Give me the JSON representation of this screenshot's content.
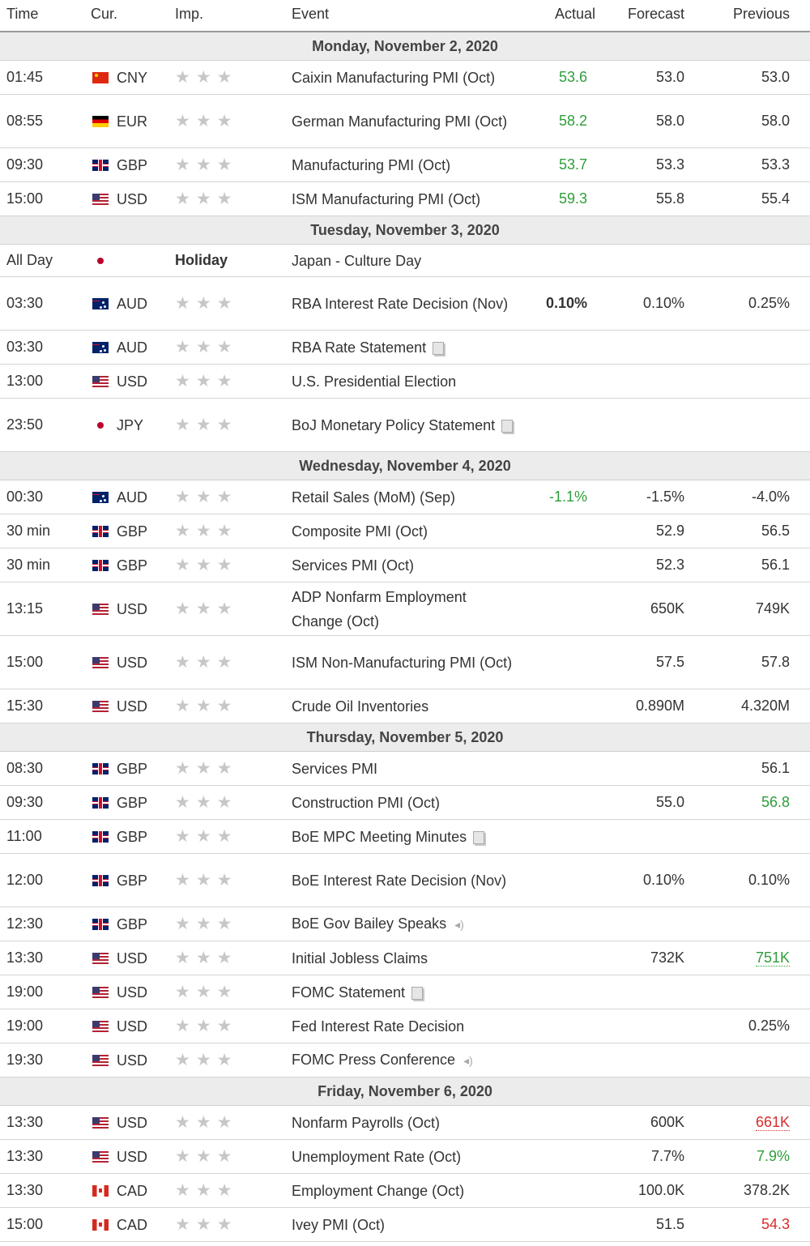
{
  "headers": {
    "time": "Time",
    "cur": "Cur.",
    "imp": "Imp.",
    "event": "Event",
    "actual": "Actual",
    "forecast": "Forecast",
    "previous": "Previous"
  },
  "colors": {
    "positive": "#2e9e3a",
    "negative": "#d92b2b",
    "day_header_bg": "#ececec"
  },
  "days": [
    {
      "label": "Monday, November 2, 2020",
      "events": [
        {
          "time": "01:45",
          "flag": "cn",
          "cur": "CNY",
          "event": "Caixin Manufacturing PMI (Oct)",
          "actual": "53.6",
          "actual_style": "green",
          "forecast": "53.0",
          "previous": "53.0",
          "h": 42
        },
        {
          "time": "08:55",
          "flag": "de",
          "cur": "EUR",
          "event": "German Manufacturing PMI (Oct)",
          "actual": "58.2",
          "actual_style": "green",
          "forecast": "58.0",
          "previous": "58.0",
          "h": 66
        },
        {
          "time": "09:30",
          "flag": "gb",
          "cur": "GBP",
          "event": "Manufacturing PMI (Oct)",
          "actual": "53.7",
          "actual_style": "green",
          "forecast": "53.3",
          "previous": "53.3",
          "h": 42
        },
        {
          "time": "15:00",
          "flag": "us",
          "cur": "USD",
          "event": "ISM Manufacturing PMI (Oct)",
          "actual": "59.3",
          "actual_style": "green",
          "forecast": "55.8",
          "previous": "55.4",
          "h": 42
        }
      ]
    },
    {
      "label": "Tuesday, November 3, 2020",
      "events": [
        {
          "time": "All Day",
          "flag": "jp",
          "cur": "",
          "holiday": "Holiday",
          "event": "Japan - Culture Day",
          "actual": "",
          "forecast": "",
          "previous": "",
          "h": 40
        },
        {
          "time": "03:30",
          "flag": "au",
          "cur": "AUD",
          "event": "RBA Interest Rate Decision (Nov)",
          "actual": "0.10%",
          "actual_style": "bold",
          "forecast": "0.10%",
          "previous": "0.25%",
          "h": 66
        },
        {
          "time": "03:30",
          "flag": "au",
          "cur": "AUD",
          "event": "RBA Rate Statement",
          "icon": "doc-icon",
          "actual": "",
          "forecast": "",
          "previous": "",
          "h": 42
        },
        {
          "time": "13:00",
          "flag": "us",
          "cur": "USD",
          "event": "U.S. Presidential Election",
          "actual": "",
          "forecast": "",
          "previous": "",
          "h": 42
        },
        {
          "time": "23:50",
          "flag": "jp",
          "cur": "JPY",
          "event": "BoJ Monetary Policy Statement",
          "icon": "doc-icon",
          "actual": "",
          "forecast": "",
          "previous": "",
          "h": 66
        }
      ]
    },
    {
      "label": "Wednesday, November 4, 2020",
      "events": [
        {
          "time": "00:30",
          "flag": "au",
          "cur": "AUD",
          "event": "Retail Sales (MoM) (Sep)",
          "actual": "-1.1%",
          "actual_style": "green",
          "forecast": "-1.5%",
          "previous": "-4.0%",
          "h": 42
        },
        {
          "time": "30 min",
          "flag": "gb",
          "cur": "GBP",
          "event": "Composite PMI (Oct)",
          "actual": "",
          "forecast": "52.9",
          "previous": "56.5",
          "h": 42
        },
        {
          "time": "30 min",
          "flag": "gb",
          "cur": "GBP",
          "event": "Services PMI (Oct)",
          "actual": "",
          "forecast": "52.3",
          "previous": "56.1",
          "h": 42
        },
        {
          "time": "13:15",
          "flag": "us",
          "cur": "USD",
          "event": "ADP Nonfarm Employment Change (Oct)",
          "actual": "",
          "forecast": "650K",
          "previous": "749K",
          "h": 66
        },
        {
          "time": "15:00",
          "flag": "us",
          "cur": "USD",
          "event": "ISM Non-Manufacturing PMI (Oct)",
          "actual": "",
          "forecast": "57.5",
          "previous": "57.8",
          "h": 66
        },
        {
          "time": "15:30",
          "flag": "us",
          "cur": "USD",
          "event": "Crude Oil Inventories",
          "actual": "",
          "forecast": "0.890M",
          "previous": "4.320M",
          "h": 42
        }
      ]
    },
    {
      "label": "Thursday, November 5, 2020",
      "events": [
        {
          "time": "08:30",
          "flag": "gb",
          "cur": "GBP",
          "event": "Services PMI",
          "actual": "",
          "forecast": "",
          "previous": "56.1",
          "h": 42
        },
        {
          "time": "09:30",
          "flag": "gb",
          "cur": "GBP",
          "event": "Construction PMI (Oct)",
          "actual": "",
          "forecast": "55.0",
          "previous": "56.8",
          "previous_style": "green",
          "h": 42
        },
        {
          "time": "11:00",
          "flag": "gb",
          "cur": "GBP",
          "event": "BoE MPC Meeting Minutes",
          "icon": "doc-icon",
          "actual": "",
          "forecast": "",
          "previous": "",
          "h": 42
        },
        {
          "time": "12:00",
          "flag": "gb",
          "cur": "GBP",
          "event": "BoE Interest Rate Decision (Nov)",
          "actual": "",
          "forecast": "0.10%",
          "previous": "0.10%",
          "h": 66
        },
        {
          "time": "12:30",
          "flag": "gb",
          "cur": "GBP",
          "event": "BoE Gov Bailey Speaks",
          "icon": "speaker-icon",
          "actual": "",
          "forecast": "",
          "previous": "",
          "h": 42
        },
        {
          "time": "13:30",
          "flag": "us",
          "cur": "USD",
          "event": "Initial Jobless Claims",
          "actual": "",
          "forecast": "732K",
          "previous": "751K",
          "previous_style": "green-dotted",
          "h": 42
        },
        {
          "time": "19:00",
          "flag": "us",
          "cur": "USD",
          "event": "FOMC Statement",
          "icon": "doc-icon",
          "actual": "",
          "forecast": "",
          "previous": "",
          "h": 42
        },
        {
          "time": "19:00",
          "flag": "us",
          "cur": "USD",
          "event": "Fed Interest Rate Decision",
          "actual": "",
          "forecast": "",
          "previous": "0.25%",
          "h": 42
        },
        {
          "time": "19:30",
          "flag": "us",
          "cur": "USD",
          "event": "FOMC Press Conference",
          "icon": "speaker-icon",
          "actual": "",
          "forecast": "",
          "previous": "",
          "h": 42
        }
      ]
    },
    {
      "label": "Friday, November 6, 2020",
      "events": [
        {
          "time": "13:30",
          "flag": "us",
          "cur": "USD",
          "event": "Nonfarm Payrolls (Oct)",
          "actual": "",
          "forecast": "600K",
          "previous": "661K",
          "previous_style": "red-dotted",
          "h": 42
        },
        {
          "time": "13:30",
          "flag": "us",
          "cur": "USD",
          "event": "Unemployment Rate (Oct)",
          "actual": "",
          "forecast": "7.7%",
          "previous": "7.9%",
          "previous_style": "green",
          "h": 42
        },
        {
          "time": "13:30",
          "flag": "ca",
          "cur": "CAD",
          "event": "Employment Change (Oct)",
          "actual": "",
          "forecast": "100.0K",
          "previous": "378.2K",
          "h": 42
        },
        {
          "time": "15:00",
          "flag": "ca",
          "cur": "CAD",
          "event": "Ivey PMI (Oct)",
          "actual": "",
          "forecast": "51.5",
          "previous": "54.3",
          "previous_style": "red",
          "h": 42
        }
      ]
    }
  ]
}
